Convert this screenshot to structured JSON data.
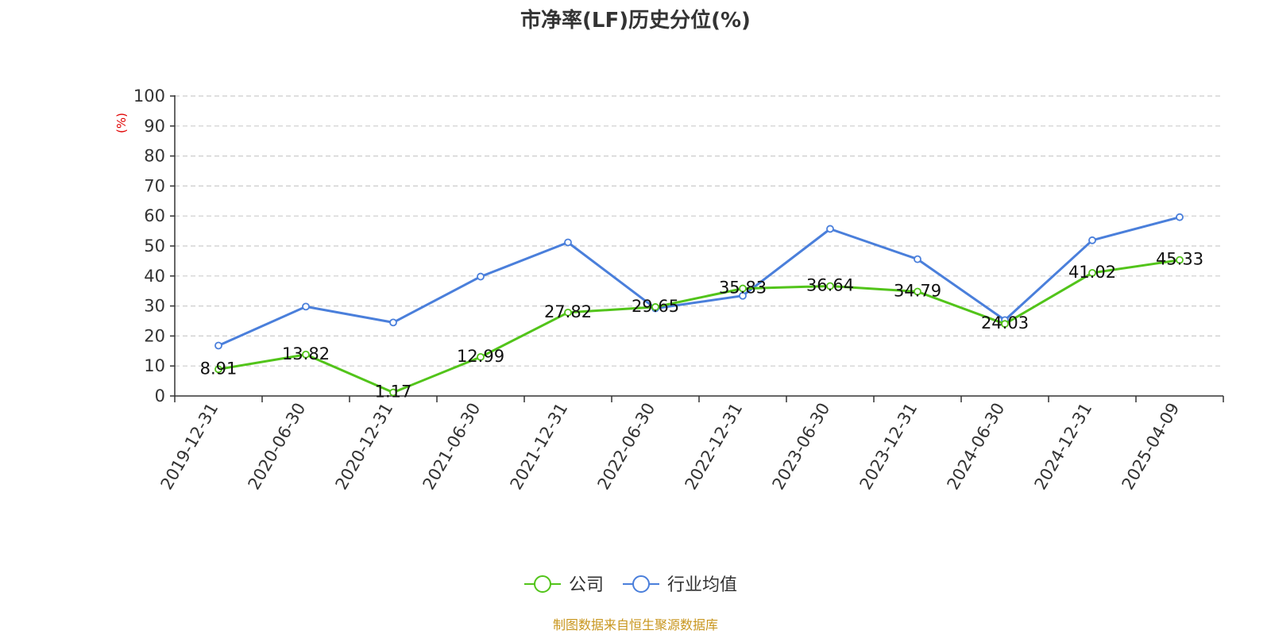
{
  "chart_data": {
    "type": "line",
    "title": "市净率(LF)历史分位(%)",
    "ylabel": "(%)",
    "ylim": [
      0,
      100
    ],
    "yticks": [
      0,
      10,
      20,
      30,
      40,
      50,
      60,
      70,
      80,
      90,
      100
    ],
    "grid": true,
    "legend_position": "bottom-center",
    "categories": [
      "2019-12-31",
      "2020-06-30",
      "2020-12-31",
      "2021-06-30",
      "2021-12-31",
      "2022-06-30",
      "2022-12-31",
      "2023-06-30",
      "2023-12-31",
      "2024-06-30",
      "2024-12-31",
      "2025-04-09"
    ],
    "series": [
      {
        "name": "公司",
        "color": "#52c41a",
        "show_labels": true,
        "values": [
          8.91,
          13.82,
          1.17,
          12.99,
          27.82,
          29.65,
          35.83,
          36.64,
          34.79,
          24.03,
          41.02,
          45.33
        ],
        "labels": [
          "8.91",
          "13.82",
          "1.17",
          "12.99",
          "27.82",
          "29.65",
          "35.83",
          "36.64",
          "34.79",
          "24.03",
          "41.02",
          "45.33"
        ]
      },
      {
        "name": "行业均值",
        "color": "#4a7fdb",
        "show_labels": false,
        "values": [
          16.8,
          29.8,
          24.5,
          39.8,
          51.2,
          29.2,
          33.4,
          55.7,
          45.6,
          25.3,
          51.9,
          59.6
        ]
      }
    ]
  },
  "footer": {
    "source": "制图数据来自恒生聚源数据库"
  }
}
